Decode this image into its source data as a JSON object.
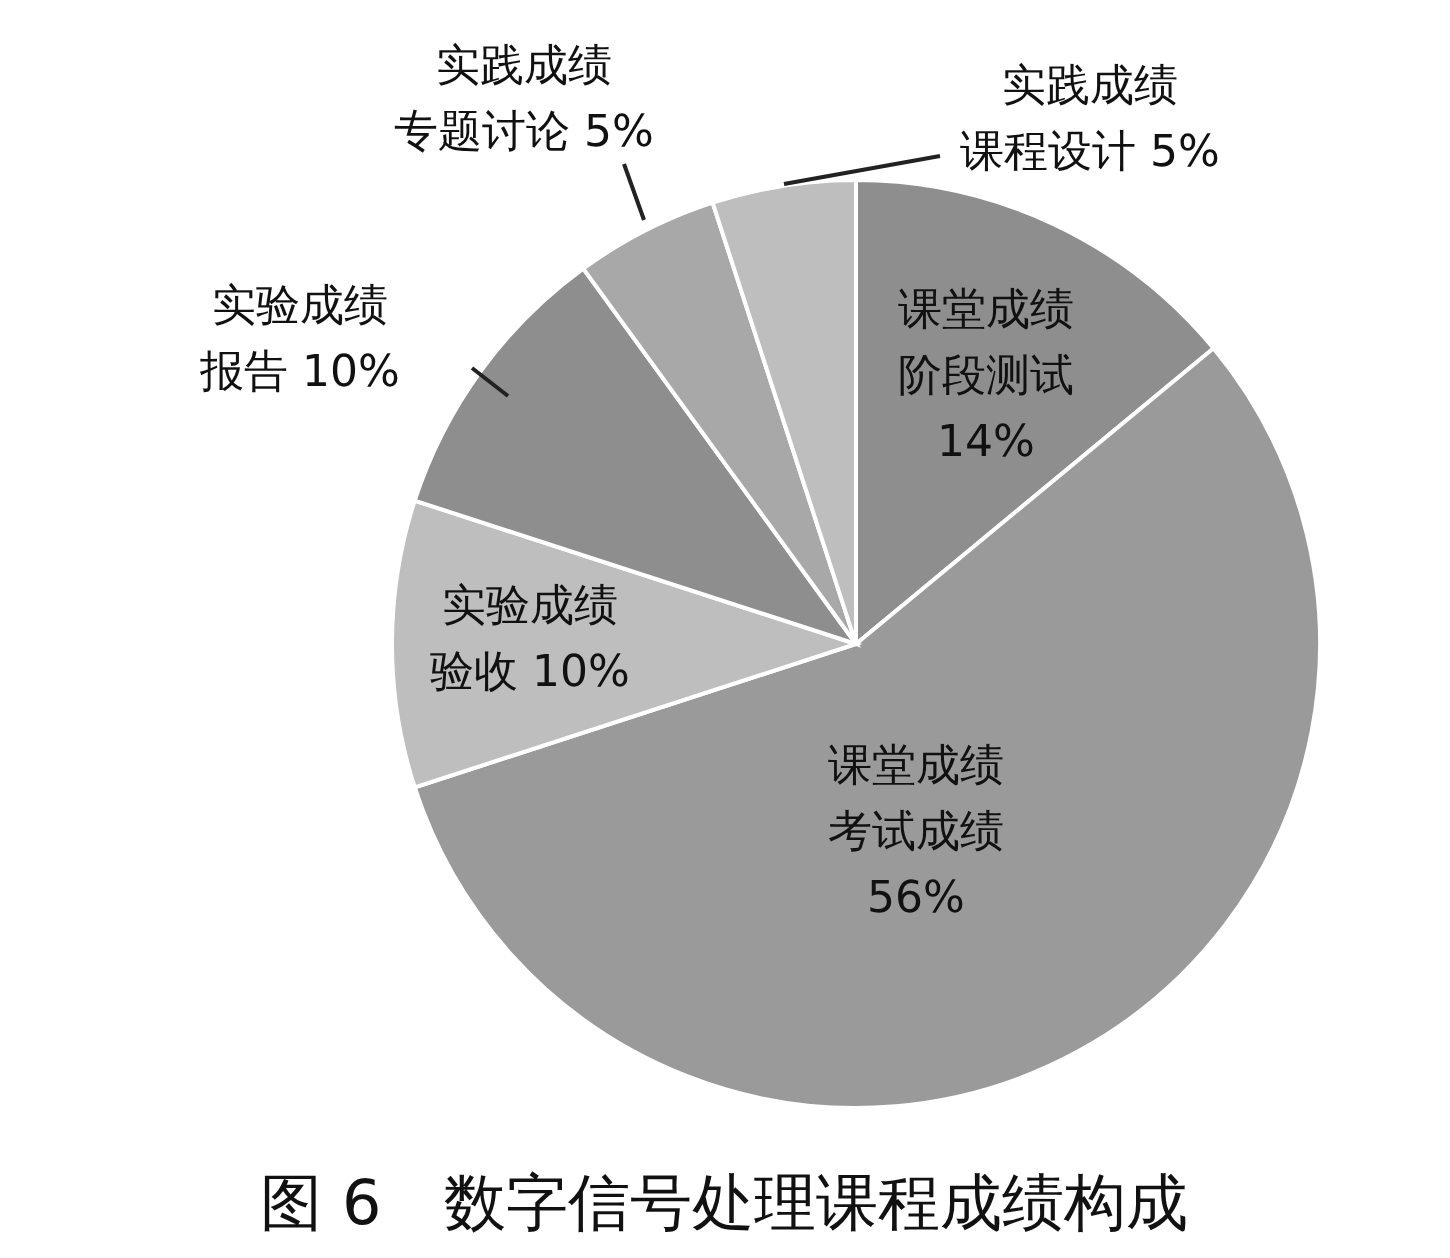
{
  "chart_data": {
    "type": "pie",
    "title": "图 6　数字信号处理课程成绩构成",
    "categories": [
      "课堂成绩阶段测试",
      "课堂成绩考试成绩",
      "实验成绩验收",
      "实验成绩报告",
      "实践成绩专题讨论",
      "实践成绩课程设计"
    ],
    "values": [
      14,
      56,
      10,
      10,
      5,
      5
    ],
    "value_labels": [
      "14%",
      "56%",
      "10%",
      "10%",
      "5%",
      "5%"
    ],
    "colors": [
      "#8e8e8e",
      "#9a9a9a",
      "#bebebe",
      "#8e8e8e",
      "#a8a8a8",
      "#bebebe"
    ]
  }
}
